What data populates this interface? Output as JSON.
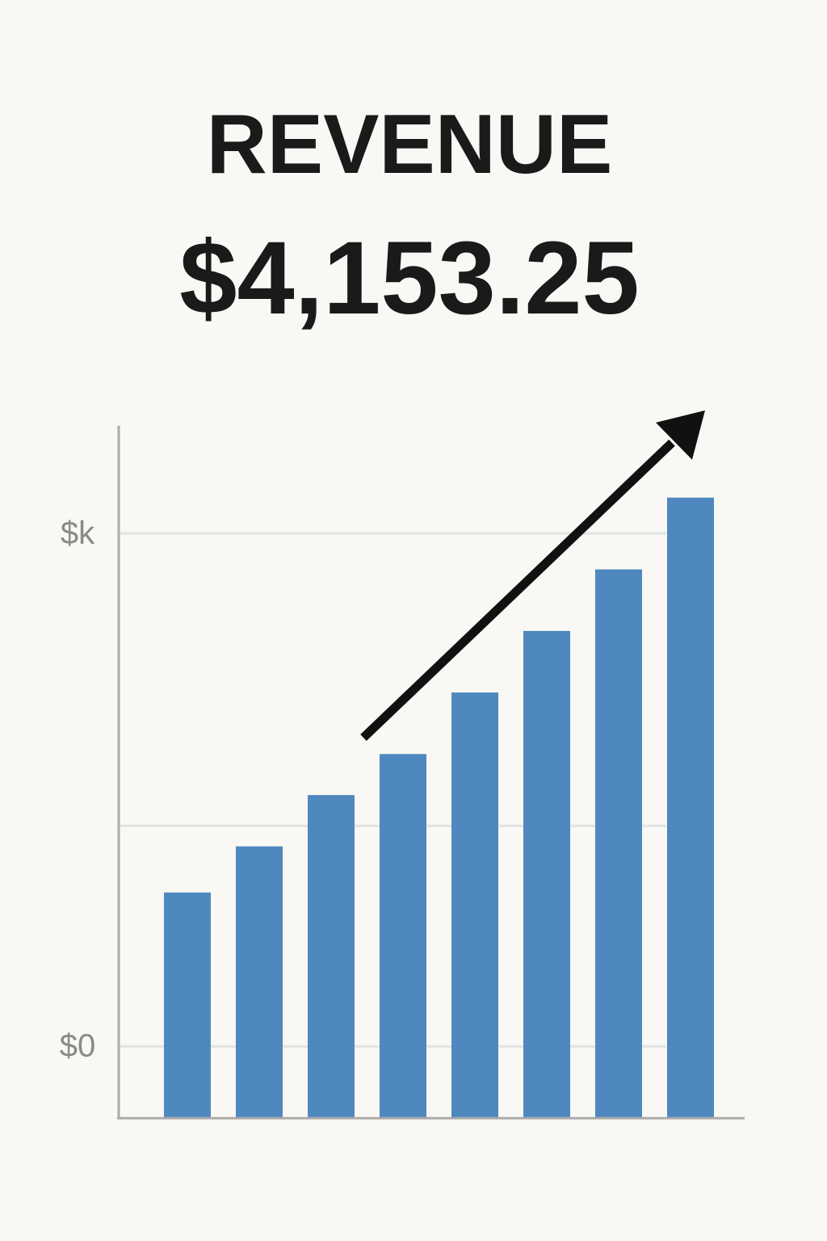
{
  "chart_data": {
    "type": "bar",
    "title": "REVENUE",
    "subtitle": "$4,153.25",
    "categories": [
      null,
      null,
      null,
      null,
      null,
      null,
      null,
      null
    ],
    "values": [
      0.3,
      0.39,
      0.49,
      0.57,
      0.69,
      0.81,
      0.93,
      1.07
    ],
    "color": "#4f88bf",
    "ylim": [
      -0.14,
      1.21
    ],
    "yticks": [
      {
        "value": 0,
        "label": "$0"
      },
      {
        "value": 0.43,
        "label": null
      },
      {
        "value": 1,
        "label": "$k"
      }
    ],
    "grid": true
  }
}
